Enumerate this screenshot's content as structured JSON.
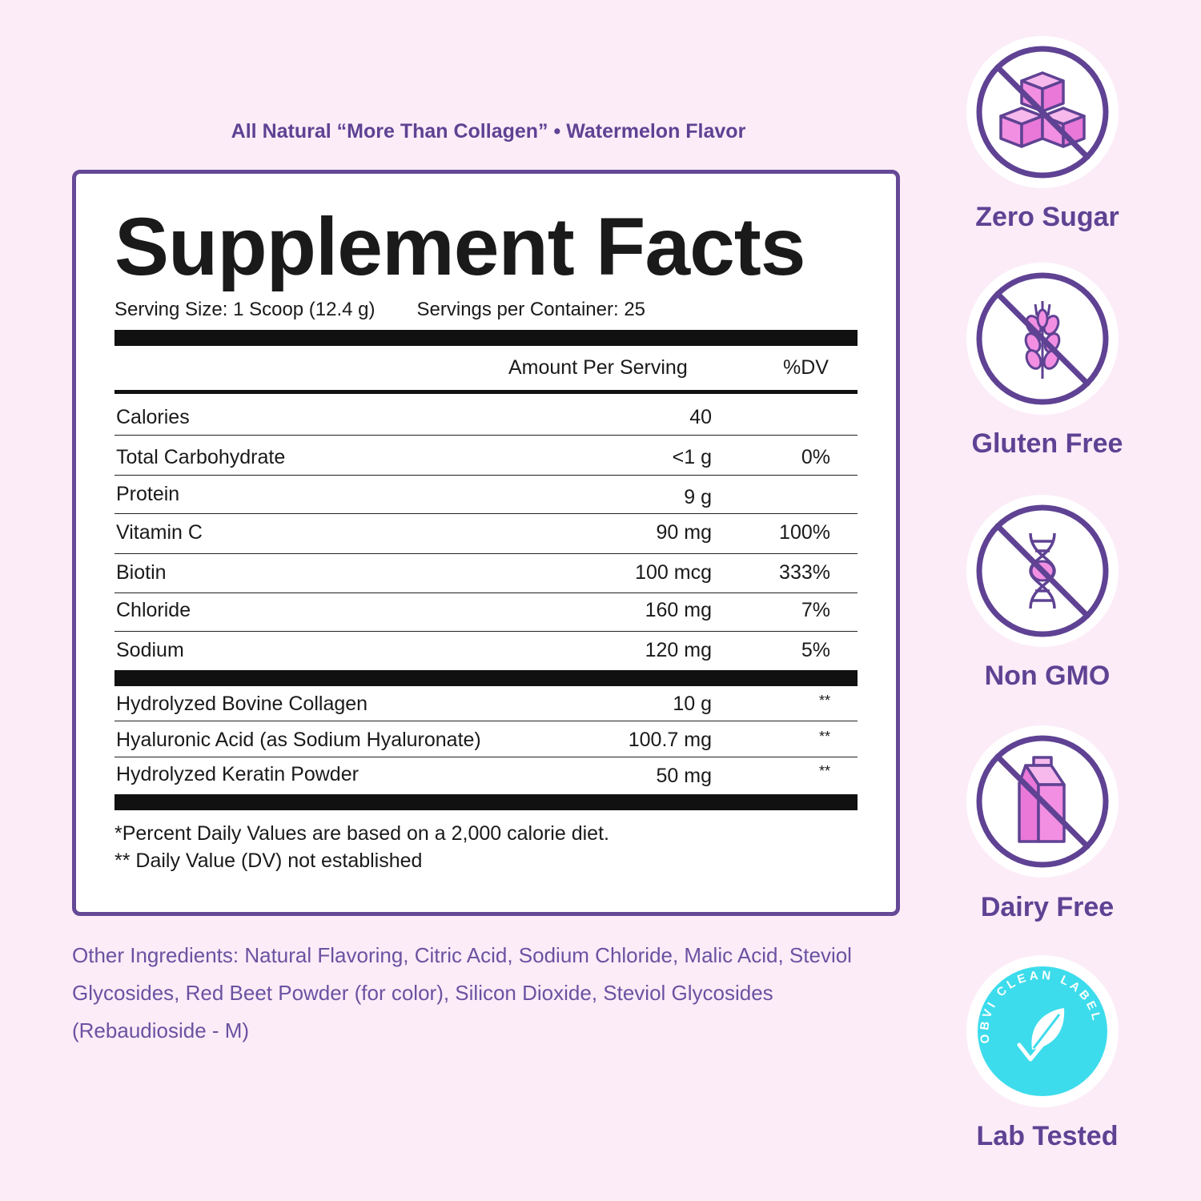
{
  "subtitle": "All Natural “More Than Collagen” • Watermelon Flavor",
  "facts": {
    "title": "Supplement Facts",
    "serving_size": "Serving Size: 1 Scoop (12.4 g)",
    "servings_per_container": "Servings per Container: 25",
    "header_amount": "Amount Per Serving",
    "header_dv": "%DV",
    "nutrients": [
      {
        "name": "Calories",
        "amount": "40",
        "dv": ""
      },
      {
        "name": "Total Carbohydrate",
        "amount": "<1 g",
        "dv": "0%"
      },
      {
        "name": "Protein",
        "amount": "9 g",
        "dv": ""
      },
      {
        "name": "Vitamin C",
        "amount": "90 mg",
        "dv": "100%"
      },
      {
        "name": "Biotin",
        "amount": "100 mcg",
        "dv": "333%"
      },
      {
        "name": "Chloride",
        "amount": "160 mg",
        "dv": "7%"
      },
      {
        "name": "Sodium",
        "amount": "120 mg",
        "dv": "5%"
      }
    ],
    "other_actives": [
      {
        "name": "Hydrolyzed Bovine Collagen",
        "amount": "10 g",
        "dv": "**"
      },
      {
        "name": "Hyaluronic Acid (as Sodium Hyaluronate)",
        "amount": "100.7 mg",
        "dv": "**"
      },
      {
        "name": "Hydrolyzed Keratin Powder",
        "amount": "50 mg",
        "dv": "**"
      }
    ],
    "footnote_1": "*Percent Daily Values are based on a 2,000 calorie diet.",
    "footnote_2": "** Daily Value (DV) not established"
  },
  "other_ingredients": "Other Ingredients: Natural Flavoring, Citric Acid, Sodium Chloride, Malic Acid, Steviol Glycosides, Red Beet Powder (for color), Silicon Dioxide, Steviol Glycosides (Rebaudioside - M)",
  "badges": [
    {
      "label": "Zero Sugar",
      "icon": "sugar-cubes-crossed-icon"
    },
    {
      "label": "Gluten Free",
      "icon": "wheat-crossed-icon"
    },
    {
      "label": "Non GMO",
      "icon": "dna-crossed-icon"
    },
    {
      "label": "Dairy Free",
      "icon": "milk-carton-crossed-icon"
    },
    {
      "label": "Lab Tested",
      "icon": "obvi-clean-label-icon",
      "seal_text": "OBVI CLEAN LABEL"
    }
  ],
  "colors": {
    "background": "#fcecf8",
    "brand_purple": "#654896",
    "icon_pink": "#f28fe2",
    "seal_cyan": "#3ddcec"
  }
}
